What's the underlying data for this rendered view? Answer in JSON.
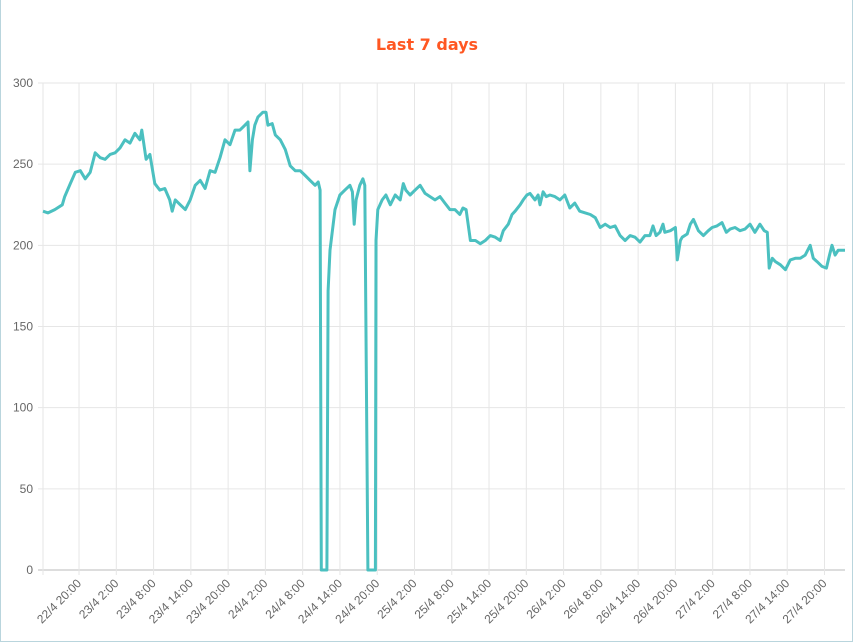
{
  "chart_data": {
    "type": "line",
    "title": "Last 7 days",
    "xlabel": "",
    "ylabel": "",
    "ylim": [
      0,
      300
    ],
    "yticks": [
      0,
      50,
      100,
      150,
      200,
      250,
      300
    ],
    "x_unit": "hours since 22/4 20:00",
    "xlim": [
      -5.8,
      123.3
    ],
    "xtick_labels": [
      "22/4 20:00",
      "23/4 2:00",
      "23/4 8:00",
      "23/4 14:00",
      "23/4 20:00",
      "24/4 2:00",
      "24/4 8:00",
      "24/4 14:00",
      "24/4 20:00",
      "25/4 2:00",
      "25/4 8:00",
      "25/4 14:00",
      "25/4 20:00",
      "26/4 2:00",
      "26/4 8:00",
      "26/4 14:00",
      "26/4 20:00",
      "27/4 2:00",
      "27/4 8:00",
      "27/4 14:00",
      "27/4 20:00"
    ],
    "grid": true,
    "legend": "none",
    "colors": {
      "line": "#4bc0c0",
      "title": "#ff5722",
      "grid": "#e6e6e6",
      "axis": "#bbbbbb"
    },
    "series": [
      {
        "name": "value",
        "points": [
          [
            -5.8,
            221
          ],
          [
            -5.0,
            220
          ],
          [
            -3.9,
            222
          ],
          [
            -2.7,
            225
          ],
          [
            -2.3,
            230
          ],
          [
            -1.4,
            238
          ],
          [
            -0.6,
            245
          ],
          [
            0.2,
            246
          ],
          [
            1.0,
            241
          ],
          [
            1.8,
            245
          ],
          [
            2.6,
            257
          ],
          [
            3.4,
            254
          ],
          [
            4.2,
            253
          ],
          [
            5.0,
            256
          ],
          [
            5.8,
            257
          ],
          [
            6.6,
            260
          ],
          [
            7.4,
            265
          ],
          [
            8.2,
            263
          ],
          [
            9.0,
            269
          ],
          [
            9.8,
            265
          ],
          [
            10.1,
            271
          ],
          [
            10.8,
            253
          ],
          [
            11.4,
            256
          ],
          [
            12.2,
            238
          ],
          [
            13.0,
            234
          ],
          [
            13.8,
            235
          ],
          [
            14.6,
            228
          ],
          [
            15.0,
            221
          ],
          [
            15.5,
            228
          ],
          [
            16.3,
            225
          ],
          [
            17.1,
            222
          ],
          [
            17.9,
            228
          ],
          [
            18.7,
            237
          ],
          [
            19.5,
            240
          ],
          [
            20.3,
            235
          ],
          [
            21.1,
            246
          ],
          [
            21.9,
            245
          ],
          [
            22.7,
            254
          ],
          [
            23.5,
            265
          ],
          [
            24.3,
            262
          ],
          [
            25.1,
            271
          ],
          [
            25.9,
            271
          ],
          [
            26.7,
            274
          ],
          [
            27.2,
            276
          ],
          [
            27.5,
            246
          ],
          [
            27.9,
            265
          ],
          [
            28.3,
            274
          ],
          [
            28.8,
            279
          ],
          [
            29.6,
            282
          ],
          [
            30.1,
            282
          ],
          [
            30.4,
            274
          ],
          [
            31.1,
            275
          ],
          [
            31.6,
            268
          ],
          [
            32.4,
            265
          ],
          [
            33.2,
            259
          ],
          [
            34.0,
            249
          ],
          [
            34.8,
            246
          ],
          [
            35.6,
            246
          ],
          [
            36.4,
            243
          ],
          [
            37.2,
            240
          ],
          [
            38.0,
            237
          ],
          [
            38.5,
            239
          ],
          [
            38.8,
            234
          ],
          [
            39.0,
            0
          ],
          [
            39.9,
            0
          ],
          [
            40.1,
            172
          ],
          [
            40.4,
            197
          ],
          [
            41.2,
            222
          ],
          [
            42.0,
            231
          ],
          [
            42.8,
            234
          ],
          [
            43.6,
            237
          ],
          [
            44.0,
            233
          ],
          [
            44.3,
            213
          ],
          [
            44.6,
            228
          ],
          [
            45.2,
            237
          ],
          [
            45.7,
            241
          ],
          [
            46.0,
            237
          ],
          [
            46.5,
            0
          ],
          [
            47.7,
            0
          ],
          [
            47.8,
            203
          ],
          [
            48.1,
            222
          ],
          [
            48.8,
            228
          ],
          [
            49.4,
            231
          ],
          [
            50.1,
            225
          ],
          [
            50.9,
            231
          ],
          [
            51.7,
            228
          ],
          [
            52.2,
            238
          ],
          [
            52.6,
            234
          ],
          [
            53.3,
            231
          ],
          [
            54.1,
            234
          ],
          [
            54.9,
            237
          ],
          [
            55.7,
            232
          ],
          [
            56.5,
            230
          ],
          [
            57.3,
            228
          ],
          [
            58.1,
            230
          ],
          [
            58.9,
            226
          ],
          [
            59.7,
            222
          ],
          [
            60.5,
            222
          ],
          [
            61.3,
            219
          ],
          [
            61.8,
            223
          ],
          [
            62.3,
            222
          ],
          [
            63.0,
            203
          ],
          [
            63.8,
            203
          ],
          [
            64.6,
            201
          ],
          [
            65.4,
            203
          ],
          [
            66.2,
            206
          ],
          [
            67.0,
            205
          ],
          [
            67.8,
            203
          ],
          [
            68.3,
            209
          ],
          [
            69.1,
            213
          ],
          [
            69.7,
            219
          ],
          [
            70.2,
            221
          ],
          [
            71.0,
            225
          ],
          [
            71.5,
            228
          ],
          [
            72.1,
            231
          ],
          [
            72.6,
            232
          ],
          [
            73.4,
            228
          ],
          [
            73.9,
            231
          ],
          [
            74.2,
            225
          ],
          [
            74.7,
            233
          ],
          [
            75.2,
            230
          ],
          [
            75.8,
            231
          ],
          [
            76.6,
            230
          ],
          [
            77.4,
            228
          ],
          [
            78.2,
            231
          ],
          [
            79.0,
            223
          ],
          [
            79.8,
            226
          ],
          [
            80.6,
            221
          ],
          [
            81.5,
            220
          ],
          [
            82.3,
            219
          ],
          [
            83.1,
            217
          ],
          [
            83.9,
            211
          ],
          [
            84.7,
            213
          ],
          [
            85.5,
            211
          ],
          [
            86.3,
            212
          ],
          [
            87.1,
            206
          ],
          [
            87.9,
            203
          ],
          [
            88.7,
            206
          ],
          [
            89.5,
            205
          ],
          [
            90.3,
            202
          ],
          [
            91.1,
            206
          ],
          [
            91.9,
            206
          ],
          [
            92.4,
            212
          ],
          [
            92.9,
            206
          ],
          [
            93.5,
            208
          ],
          [
            94.0,
            213
          ],
          [
            94.3,
            208
          ],
          [
            95.2,
            209
          ],
          [
            96.0,
            211
          ],
          [
            96.3,
            191
          ],
          [
            96.8,
            203
          ],
          [
            97.1,
            205
          ],
          [
            97.9,
            207
          ],
          [
            98.4,
            213
          ],
          [
            98.9,
            216
          ],
          [
            99.7,
            209
          ],
          [
            100.5,
            206
          ],
          [
            101.3,
            209
          ],
          [
            101.9,
            211
          ],
          [
            102.7,
            212
          ],
          [
            103.5,
            214
          ],
          [
            104.2,
            208
          ],
          [
            104.8,
            210
          ],
          [
            105.6,
            211
          ],
          [
            106.4,
            209
          ],
          [
            107.2,
            210
          ],
          [
            108.0,
            213
          ],
          [
            108.8,
            208
          ],
          [
            109.6,
            213
          ],
          [
            110.3,
            209
          ],
          [
            110.8,
            208
          ],
          [
            111.1,
            186
          ],
          [
            111.6,
            192
          ],
          [
            112.1,
            190
          ],
          [
            112.9,
            188
          ],
          [
            113.7,
            185
          ],
          [
            114.5,
            191
          ],
          [
            115.3,
            192
          ],
          [
            116.1,
            192
          ],
          [
            116.9,
            194
          ],
          [
            117.7,
            200
          ],
          [
            118.2,
            192
          ],
          [
            118.8,
            190
          ],
          [
            119.6,
            187
          ],
          [
            120.3,
            186
          ],
          [
            120.8,
            194
          ],
          [
            121.2,
            200
          ],
          [
            121.7,
            194
          ],
          [
            122.2,
            197
          ],
          [
            122.8,
            197
          ],
          [
            123.3,
            197
          ]
        ]
      }
    ]
  }
}
